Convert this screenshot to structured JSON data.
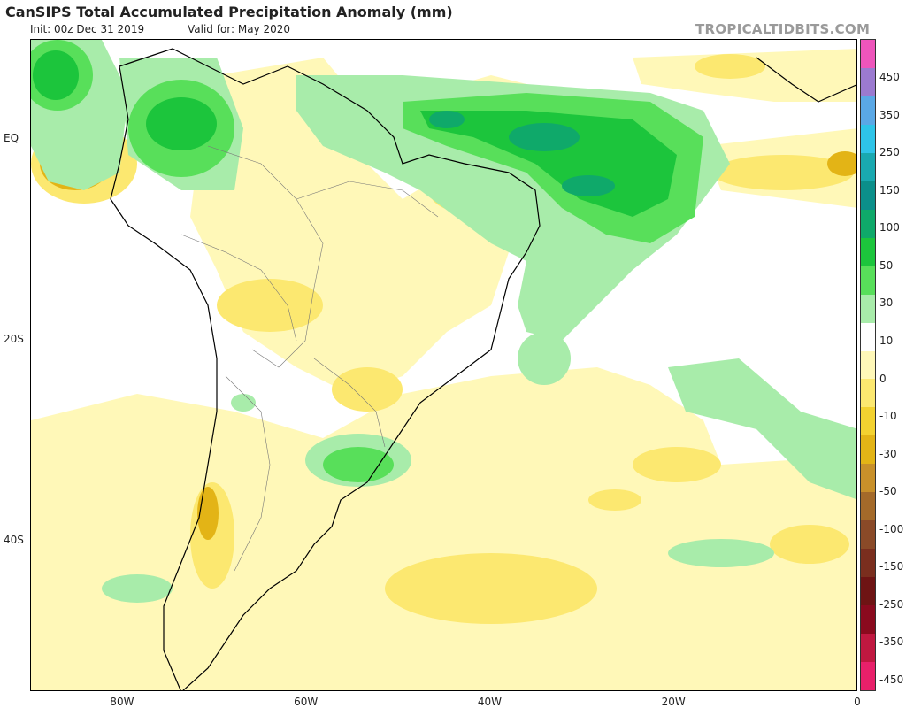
{
  "header": {
    "title": "CanSIPS Total Accumulated Precipitation Anomaly (mm)",
    "init": "Init: 00z Dec 31 2019",
    "valid": "Valid for: May 2020",
    "source": "TROPICALTIDBITS.COM"
  },
  "axes": {
    "lat_labels": [
      {
        "text": "EQ",
        "lat": 0
      },
      {
        "text": "20S",
        "lat": -20
      },
      {
        "text": "40S",
        "lat": -40
      }
    ],
    "lon_labels": [
      {
        "text": "80W",
        "lon": -80
      },
      {
        "text": "60W",
        "lon": -60
      },
      {
        "text": "40W",
        "lon": -40
      },
      {
        "text": "20W",
        "lon": -20
      },
      {
        "text": "0",
        "lon": 0
      }
    ],
    "lon_range": [
      -90,
      0
    ],
    "lat_range": [
      -55,
      10
    ]
  },
  "colorbar": {
    "labels": [
      "450",
      "350",
      "250",
      "150",
      "100",
      "50",
      "30",
      "10",
      "0",
      "-10",
      "-30",
      "-50",
      "-100",
      "-150",
      "-250",
      "-350",
      "-450"
    ],
    "colors": [
      "#ee55bb",
      "#9b7ad0",
      "#5aa8e6",
      "#2ec4e8",
      "#19a9b0",
      "#0b8f8a",
      "#0fa96a",
      "#1cc53c",
      "#58df5a",
      "#a8ecaa",
      "#ffffff",
      "#fff8b8",
      "#fce870",
      "#f3d230",
      "#e3b416",
      "#c8902a",
      "#a46a2a",
      "#8a4a28",
      "#7a2e1e",
      "#6e1414",
      "#8a0a1e",
      "#c01840",
      "#e8206a"
    ]
  }
}
